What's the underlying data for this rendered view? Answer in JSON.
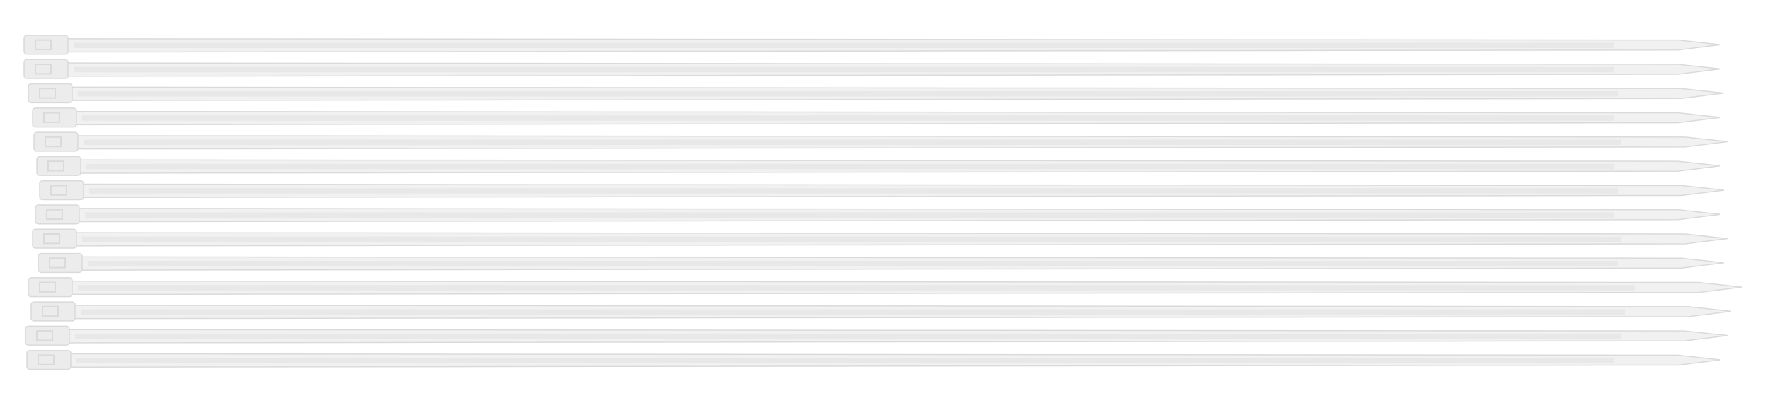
{
  "photo": {
    "subject": "cable-ties",
    "count": 14,
    "colors": {
      "background": "#ffffff",
      "tie_fill": "#f1f1f1",
      "tie_edge": "#dadada",
      "tie_ridge": "#e4e4e4",
      "head_fill": "#ececec"
    }
  }
}
